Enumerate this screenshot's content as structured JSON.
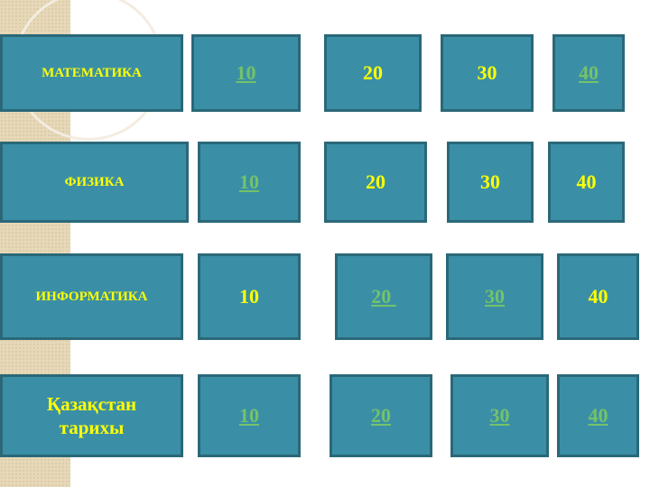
{
  "colors": {
    "tile": "#3a8fa6",
    "border": "#2a6878",
    "text": "#ffff00",
    "link": "#74c26a"
  },
  "rows": [
    {
      "category": "МАТЕМАТИКА",
      "points": [
        {
          "label": "10",
          "visited_link": true
        },
        {
          "label": "20",
          "visited_link": false
        },
        {
          "label": "30",
          "visited_link": false
        },
        {
          "label": "40",
          "visited_link": true
        }
      ]
    },
    {
      "category": "ФИЗИКА",
      "points": [
        {
          "label": "10",
          "visited_link": true
        },
        {
          "label": "20",
          "visited_link": false
        },
        {
          "label": "30",
          "visited_link": false
        },
        {
          "label": "40",
          "visited_link": false
        }
      ]
    },
    {
      "category": "ИНФОРМАТИКА",
      "points": [
        {
          "label": "10",
          "visited_link": false
        },
        {
          "label": "20 ",
          "visited_link": true
        },
        {
          "label": "30",
          "visited_link": true
        },
        {
          "label": "40",
          "visited_link": false
        }
      ]
    },
    {
      "category": "Қазақстан тарихы",
      "points": [
        {
          "label": "10",
          "visited_link": true
        },
        {
          "label": "20",
          "visited_link": true
        },
        {
          "label": "30",
          "visited_link": true
        },
        {
          "label": "40",
          "visited_link": true
        }
      ]
    }
  ]
}
